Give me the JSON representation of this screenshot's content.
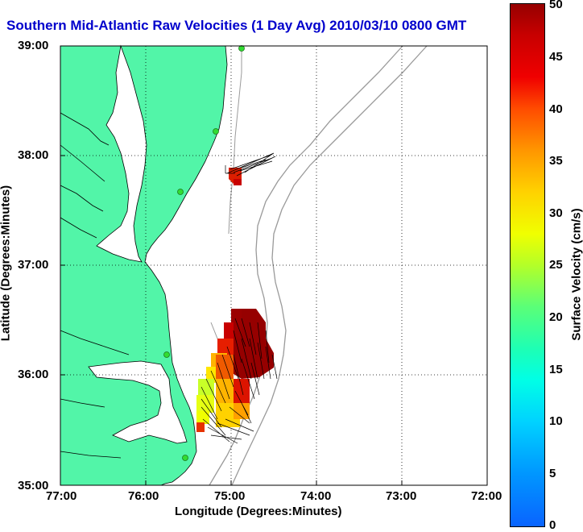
{
  "title": "Southern Mid-Atlantic Raw Velocities (1 Day Avg) 2010/03/10 0800 GMT",
  "map": {
    "xlabel": "Longitude (Degrees:Minutes)",
    "ylabel": "Latitude (Degrees:Minutes)",
    "x_ticks": [
      "77:00",
      "76:00",
      "75:00",
      "74:00",
      "73:00",
      "72:00"
    ],
    "y_ticks": [
      "39:00",
      "38:00",
      "37:00",
      "36:00",
      "35:00"
    ],
    "lon_range": [
      -77,
      -72
    ],
    "lat_range": [
      35,
      39
    ],
    "land_color": "#52f5a8",
    "grid": "dotted"
  },
  "colorbar": {
    "label": "Surface Velocity (cm/s)",
    "ticks": [
      "50",
      "45",
      "40",
      "35",
      "30",
      "25",
      "20",
      "15",
      "10",
      "5",
      "0"
    ],
    "range": [
      0,
      50
    ]
  }
}
